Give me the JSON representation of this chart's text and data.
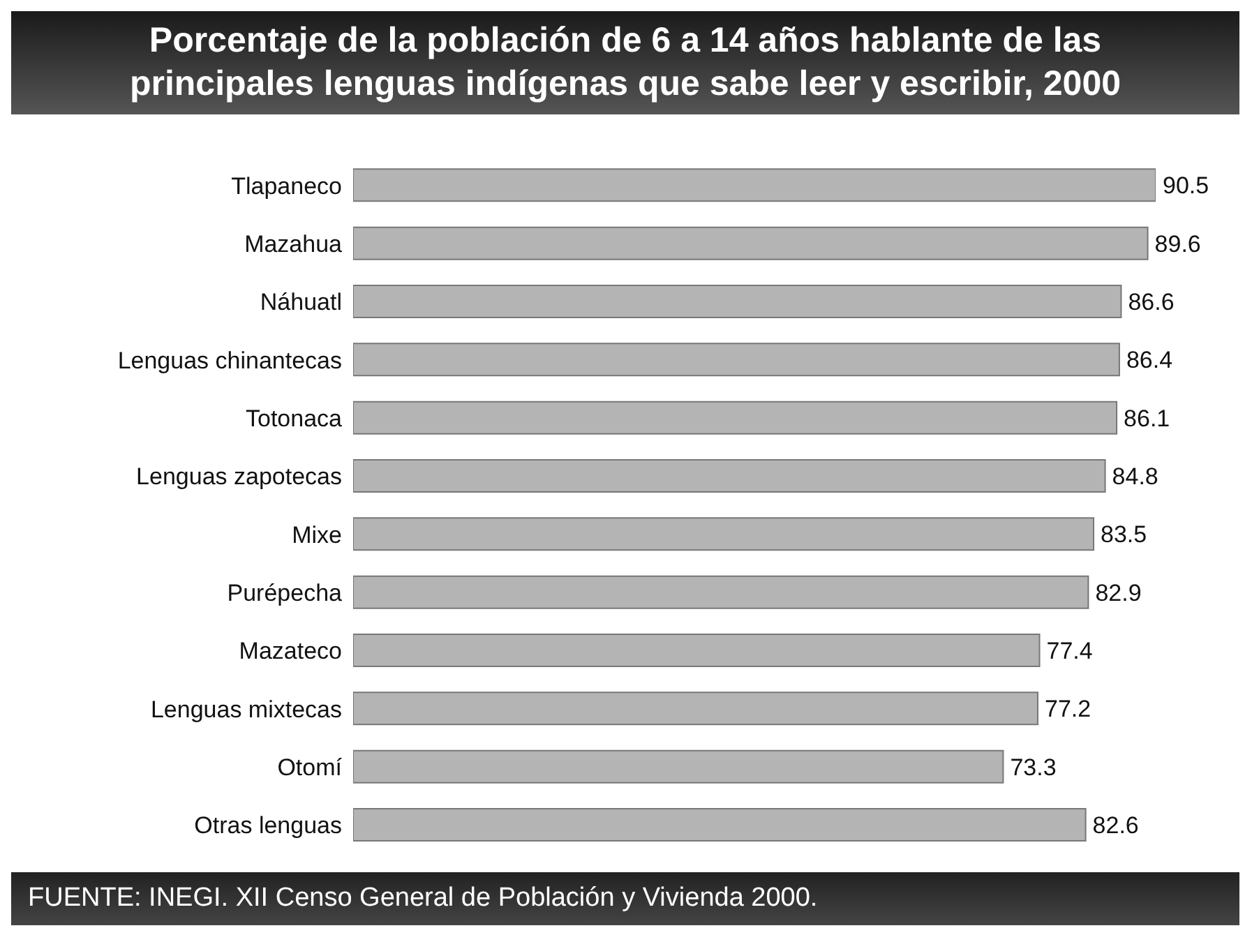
{
  "chart_data": {
    "type": "bar",
    "orientation": "horizontal",
    "title": "Porcentaje de la población de 6 a 14 años hablante de las principales lenguas indígenas que sabe leer y escribir, 2000",
    "categories": [
      "Tlapaneco",
      "Mazahua",
      "Náhuatl",
      "Lenguas chinantecas",
      "Totonaca",
      "Lenguas zapotecas",
      "Mixe",
      "Purépecha",
      "Mazateco",
      "Lenguas mixtecas",
      "Otomí",
      "Otras lenguas"
    ],
    "values": [
      90.5,
      89.6,
      86.6,
      86.4,
      86.1,
      84.8,
      83.5,
      82.9,
      77.4,
      77.2,
      73.3,
      82.6
    ],
    "color": "#b4b4b4",
    "data_labels": true,
    "tick_labels": "y",
    "annotations": [
      "FUENTE: INEGI. XII Censo General de Población y Vivienda 2000."
    ]
  }
}
